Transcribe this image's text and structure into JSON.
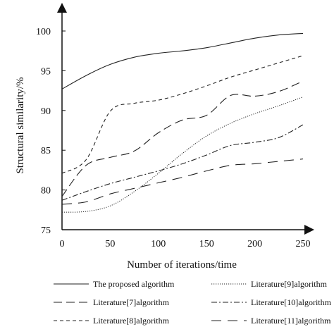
{
  "chart_data": {
    "type": "line",
    "title": "",
    "xlabel": "Number of iterations/time",
    "ylabel": "Structural similarity/%",
    "xlim": [
      0,
      250
    ],
    "ylim": [
      75,
      100
    ],
    "xticks": [
      "0",
      "50",
      "100",
      "150",
      "200",
      "250"
    ],
    "yticks": [
      "75",
      "80",
      "85",
      "90",
      "95",
      "100"
    ],
    "grid": false,
    "legend_position": "bottom",
    "x": [
      0,
      25,
      50,
      75,
      100,
      125,
      150,
      175,
      200,
      225,
      250
    ],
    "series": [
      {
        "name": "The proposed algorithm",
        "style": "solid",
        "values": [
          92.7,
          94.4,
          95.8,
          96.7,
          97.2,
          97.5,
          97.9,
          98.5,
          99.1,
          99.5,
          99.7
        ]
      },
      {
        "name": "Literature[7]algorithm",
        "style": "long-dash",
        "values": [
          79.2,
          83.1,
          84.1,
          84.9,
          87.2,
          88.8,
          89.4,
          91.9,
          91.8,
          92.4,
          93.7
        ]
      },
      {
        "name": "Literature[8]algorithm",
        "style": "short-dash",
        "values": [
          82.1,
          83.8,
          89.9,
          90.9,
          91.3,
          92.1,
          93.1,
          94.2,
          95.1,
          96.0,
          96.9
        ]
      },
      {
        "name": "Literature[9]algorithm",
        "style": "dotted",
        "values": [
          77.2,
          77.3,
          78.0,
          79.8,
          82.1,
          84.6,
          86.8,
          88.4,
          89.6,
          90.6,
          91.7
        ]
      },
      {
        "name": "Literature[10]algorithm",
        "style": "dash-dot",
        "values": [
          78.7,
          79.8,
          80.8,
          81.6,
          82.4,
          83.3,
          84.4,
          85.6,
          86.0,
          86.6,
          88.2
        ]
      },
      {
        "name": "Literature[11]algorithm",
        "style": "long-dash-sparse",
        "values": [
          78.2,
          78.5,
          79.5,
          80.2,
          80.9,
          81.6,
          82.4,
          83.1,
          83.3,
          83.6,
          83.9
        ]
      }
    ]
  }
}
